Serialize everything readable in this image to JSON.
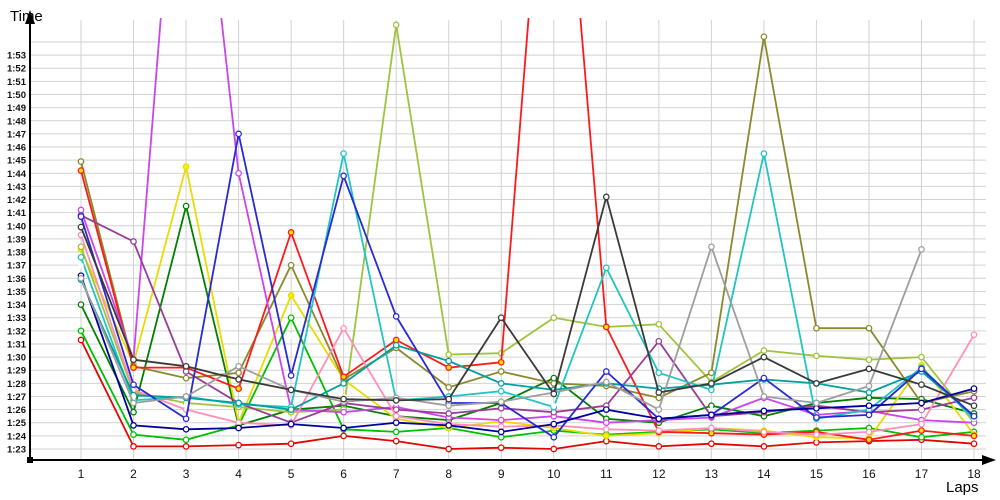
{
  "chart_data": {
    "type": "line",
    "title": "",
    "xlabel": "Laps",
    "ylabel": "Time",
    "x": [
      1,
      2,
      3,
      4,
      5,
      6,
      7,
      8,
      9,
      10,
      11,
      12,
      13,
      14,
      15,
      16,
      17,
      18
    ],
    "x_tick_labels": [
      "1",
      "2",
      "3",
      "4",
      "5",
      "6",
      "7",
      "8",
      "9",
      "10",
      "11",
      "12",
      "13",
      "14",
      "15",
      "16",
      "17",
      "18"
    ],
    "y_axis": {
      "min_sec": 83,
      "max_sec": 113,
      "unit": "m:ss lap time",
      "tick_labels": [
        "1:23",
        "1:24",
        "1:25",
        "1:26",
        "1:27",
        "1:28",
        "1:29",
        "1:30",
        "1:31",
        "1:32",
        "1:33",
        "1:34",
        "1:35",
        "1:36",
        "1:37",
        "1:38",
        "1:39",
        "1:40",
        "1:41",
        "1:42",
        "1:43",
        "1:44",
        "1:45",
        "1:46",
        "1:47",
        "1:48",
        "1:49",
        "1:50",
        "1:51",
        "1:52",
        "1:53"
      ]
    },
    "grid": true,
    "legend": "none",
    "note_values_are_seconds": "values are lap times in seconds (e.g. 83.2 = 1:23.2); values > 116 are off-chart spikes; null = no lap recorded",
    "series": [
      {
        "name": "red",
        "color": "#e10600",
        "marker_fill": "#ffffff",
        "values": [
          91.3,
          83.2,
          83.2,
          83.3,
          83.4,
          84.0,
          83.6,
          83.0,
          83.1,
          83.0,
          83.6,
          83.2,
          83.4,
          83.2,
          83.5,
          83.6,
          83.7,
          83.4
        ]
      },
      {
        "name": "green",
        "color": "#00c000",
        "marker_fill": "#ffffff",
        "values": [
          92.0,
          84.1,
          83.7,
          84.8,
          93.0,
          84.5,
          84.3,
          84.6,
          83.9,
          84.4,
          84.1,
          84.3,
          84.5,
          84.2,
          84.4,
          84.6,
          83.9,
          84.3
        ]
      },
      {
        "name": "dark-green",
        "color": "#008000",
        "marker_fill": "#ffffff",
        "values": [
          94.0,
          85.8,
          101.5,
          84.8,
          86.0,
          86.3,
          85.5,
          85.2,
          86.5,
          88.4,
          85.3,
          85.0,
          86.3,
          85.5,
          86.5,
          86.9,
          86.8,
          85.7
        ]
      },
      {
        "name": "yellow",
        "color": "#e8dc00",
        "marker_fill": "#ffee00",
        "values": [
          98.2,
          89.5,
          104.5,
          85.0,
          94.7,
          88.3,
          85.3,
          84.6,
          85.1,
          84.6,
          84.0,
          84.2,
          84.6,
          84.4,
          83.9,
          83.8,
          89.4,
          84.1
        ]
      },
      {
        "name": "yellow-green",
        "color": "#9fc43c",
        "marker_fill": "#ffffff",
        "values": [
          98.4,
          87.3,
          86.5,
          86.2,
          85.8,
          86.0,
          115.3,
          90.2,
          90.3,
          93.0,
          92.3,
          92.5,
          88.1,
          90.5,
          90.1,
          89.8,
          90.0,
          85.0
        ]
      },
      {
        "name": "olive",
        "color": "#8a8a2d",
        "marker_fill": "#ffffff",
        "values": [
          104.9,
          89.3,
          88.4,
          88.8,
          97.0,
          88.3,
          90.7,
          87.7,
          88.9,
          88.0,
          87.8,
          86.9,
          88.8,
          114.4,
          92.2,
          92.2,
          86.5,
          87.4
        ]
      },
      {
        "name": "red-2",
        "color": "#ff1a1a",
        "marker_fill": "#ffe800",
        "values": [
          104.2,
          89.2,
          89.2,
          87.6,
          99.5,
          88.5,
          91.3,
          89.2,
          89.6,
          140.0,
          92.3,
          84.3,
          84.2,
          84.1,
          84.3,
          83.7,
          84.4,
          84.0
        ]
      },
      {
        "name": "magenta",
        "color": "#cc44ee",
        "marker_fill": "#ffffff",
        "values": [
          101.2,
          89.8,
          140.0,
          104.0,
          86.0,
          85.8,
          86.2,
          85.4,
          85.2,
          85.5,
          85.0,
          85.2,
          85.4,
          86.9,
          85.6,
          85.9,
          85.2,
          85.0
        ]
      },
      {
        "name": "purple",
        "color": "#993d99",
        "marker_fill": "#ffffff",
        "values": [
          100.8,
          98.8,
          88.9,
          86.5,
          85.0,
          86.5,
          86.0,
          85.7,
          86.1,
          85.8,
          86.3,
          91.2,
          85.5,
          85.8,
          86.3,
          85.8,
          86.0,
          86.9
        ]
      },
      {
        "name": "pink",
        "color": "#ff8fb8",
        "marker_fill": "#ffffff",
        "values": [
          99.3,
          87.5,
          86.0,
          85.0,
          84.8,
          92.2,
          85.5,
          84.9,
          84.7,
          84.8,
          84.5,
          84.4,
          84.6,
          84.3,
          84.1,
          84.3,
          84.9,
          91.7
        ]
      },
      {
        "name": "cyan",
        "color": "#22c4c4",
        "marker_fill": "#ffffff",
        "values": [
          97.6,
          86.7,
          87.0,
          86.4,
          86.2,
          105.5,
          86.7,
          87.0,
          87.4,
          86.2,
          96.8,
          88.8,
          87.5,
          105.5,
          85.3,
          86.0,
          89.2,
          85.3
        ]
      },
      {
        "name": "teal",
        "color": "#00a0a0",
        "marker_fill": "#ffffff",
        "values": [
          95.9,
          87.1,
          86.9,
          86.5,
          86.0,
          88.0,
          90.9,
          89.7,
          88.0,
          87.5,
          88.0,
          87.6,
          87.9,
          88.3,
          88.0,
          87.3,
          88.9,
          85.5
        ]
      },
      {
        "name": "light-blue",
        "color": "#3d9bе0",
        "marker_fill": "#ffffff",
        "values": [
          97.0,
          87.0,
          86.3,
          94.8,
          91.6,
          87.0,
          86.5,
          86.3,
          86.6,
          86.3,
          86.0,
          86.3,
          86.0,
          86.3,
          86.0,
          86.3,
          86.0,
          85.3
        ]
      },
      {
        "name": "blue",
        "color": "#2a2ad4",
        "marker_fill": "#ffffff",
        "values": [
          100.7,
          87.9,
          85.3,
          107.0,
          88.6,
          103.8,
          93.1,
          86.5,
          86.5,
          83.9,
          88.9,
          85.3,
          85.6,
          88.4,
          85.4,
          85.6,
          89.1,
          85.5
        ]
      },
      {
        "name": "navy",
        "color": "#000099",
        "marker_fill": "#ffffff",
        "values": [
          96.2,
          84.8,
          84.5,
          84.6,
          84.9,
          84.6,
          85.0,
          84.8,
          84.3,
          84.9,
          86.0,
          85.3,
          85.6,
          85.9,
          86.1,
          86.3,
          86.5,
          87.6
        ]
      },
      {
        "name": "gray",
        "color": "#9e9e9e",
        "marker_fill": "#ffffff",
        "values": [
          96.0,
          86.5,
          87.0,
          89.3,
          87.5,
          86.6,
          86.9,
          86.3,
          86.6,
          87.3,
          88.1,
          86.0,
          98.4,
          87.0,
          86.5,
          87.8,
          98.2,
          null
        ]
      },
      {
        "name": "black",
        "color": "#3a3a3a",
        "marker_fill": "#ffffff",
        "values": [
          99.9,
          89.8,
          89.3,
          88.3,
          87.5,
          86.8,
          86.7,
          86.8,
          93.0,
          87.2,
          102.2,
          87.3,
          88.0,
          90.0,
          88.0,
          89.1,
          87.9,
          86.3
        ]
      }
    ]
  },
  "labels": {
    "y_axis_title": "Time",
    "x_axis_title": "Laps"
  }
}
